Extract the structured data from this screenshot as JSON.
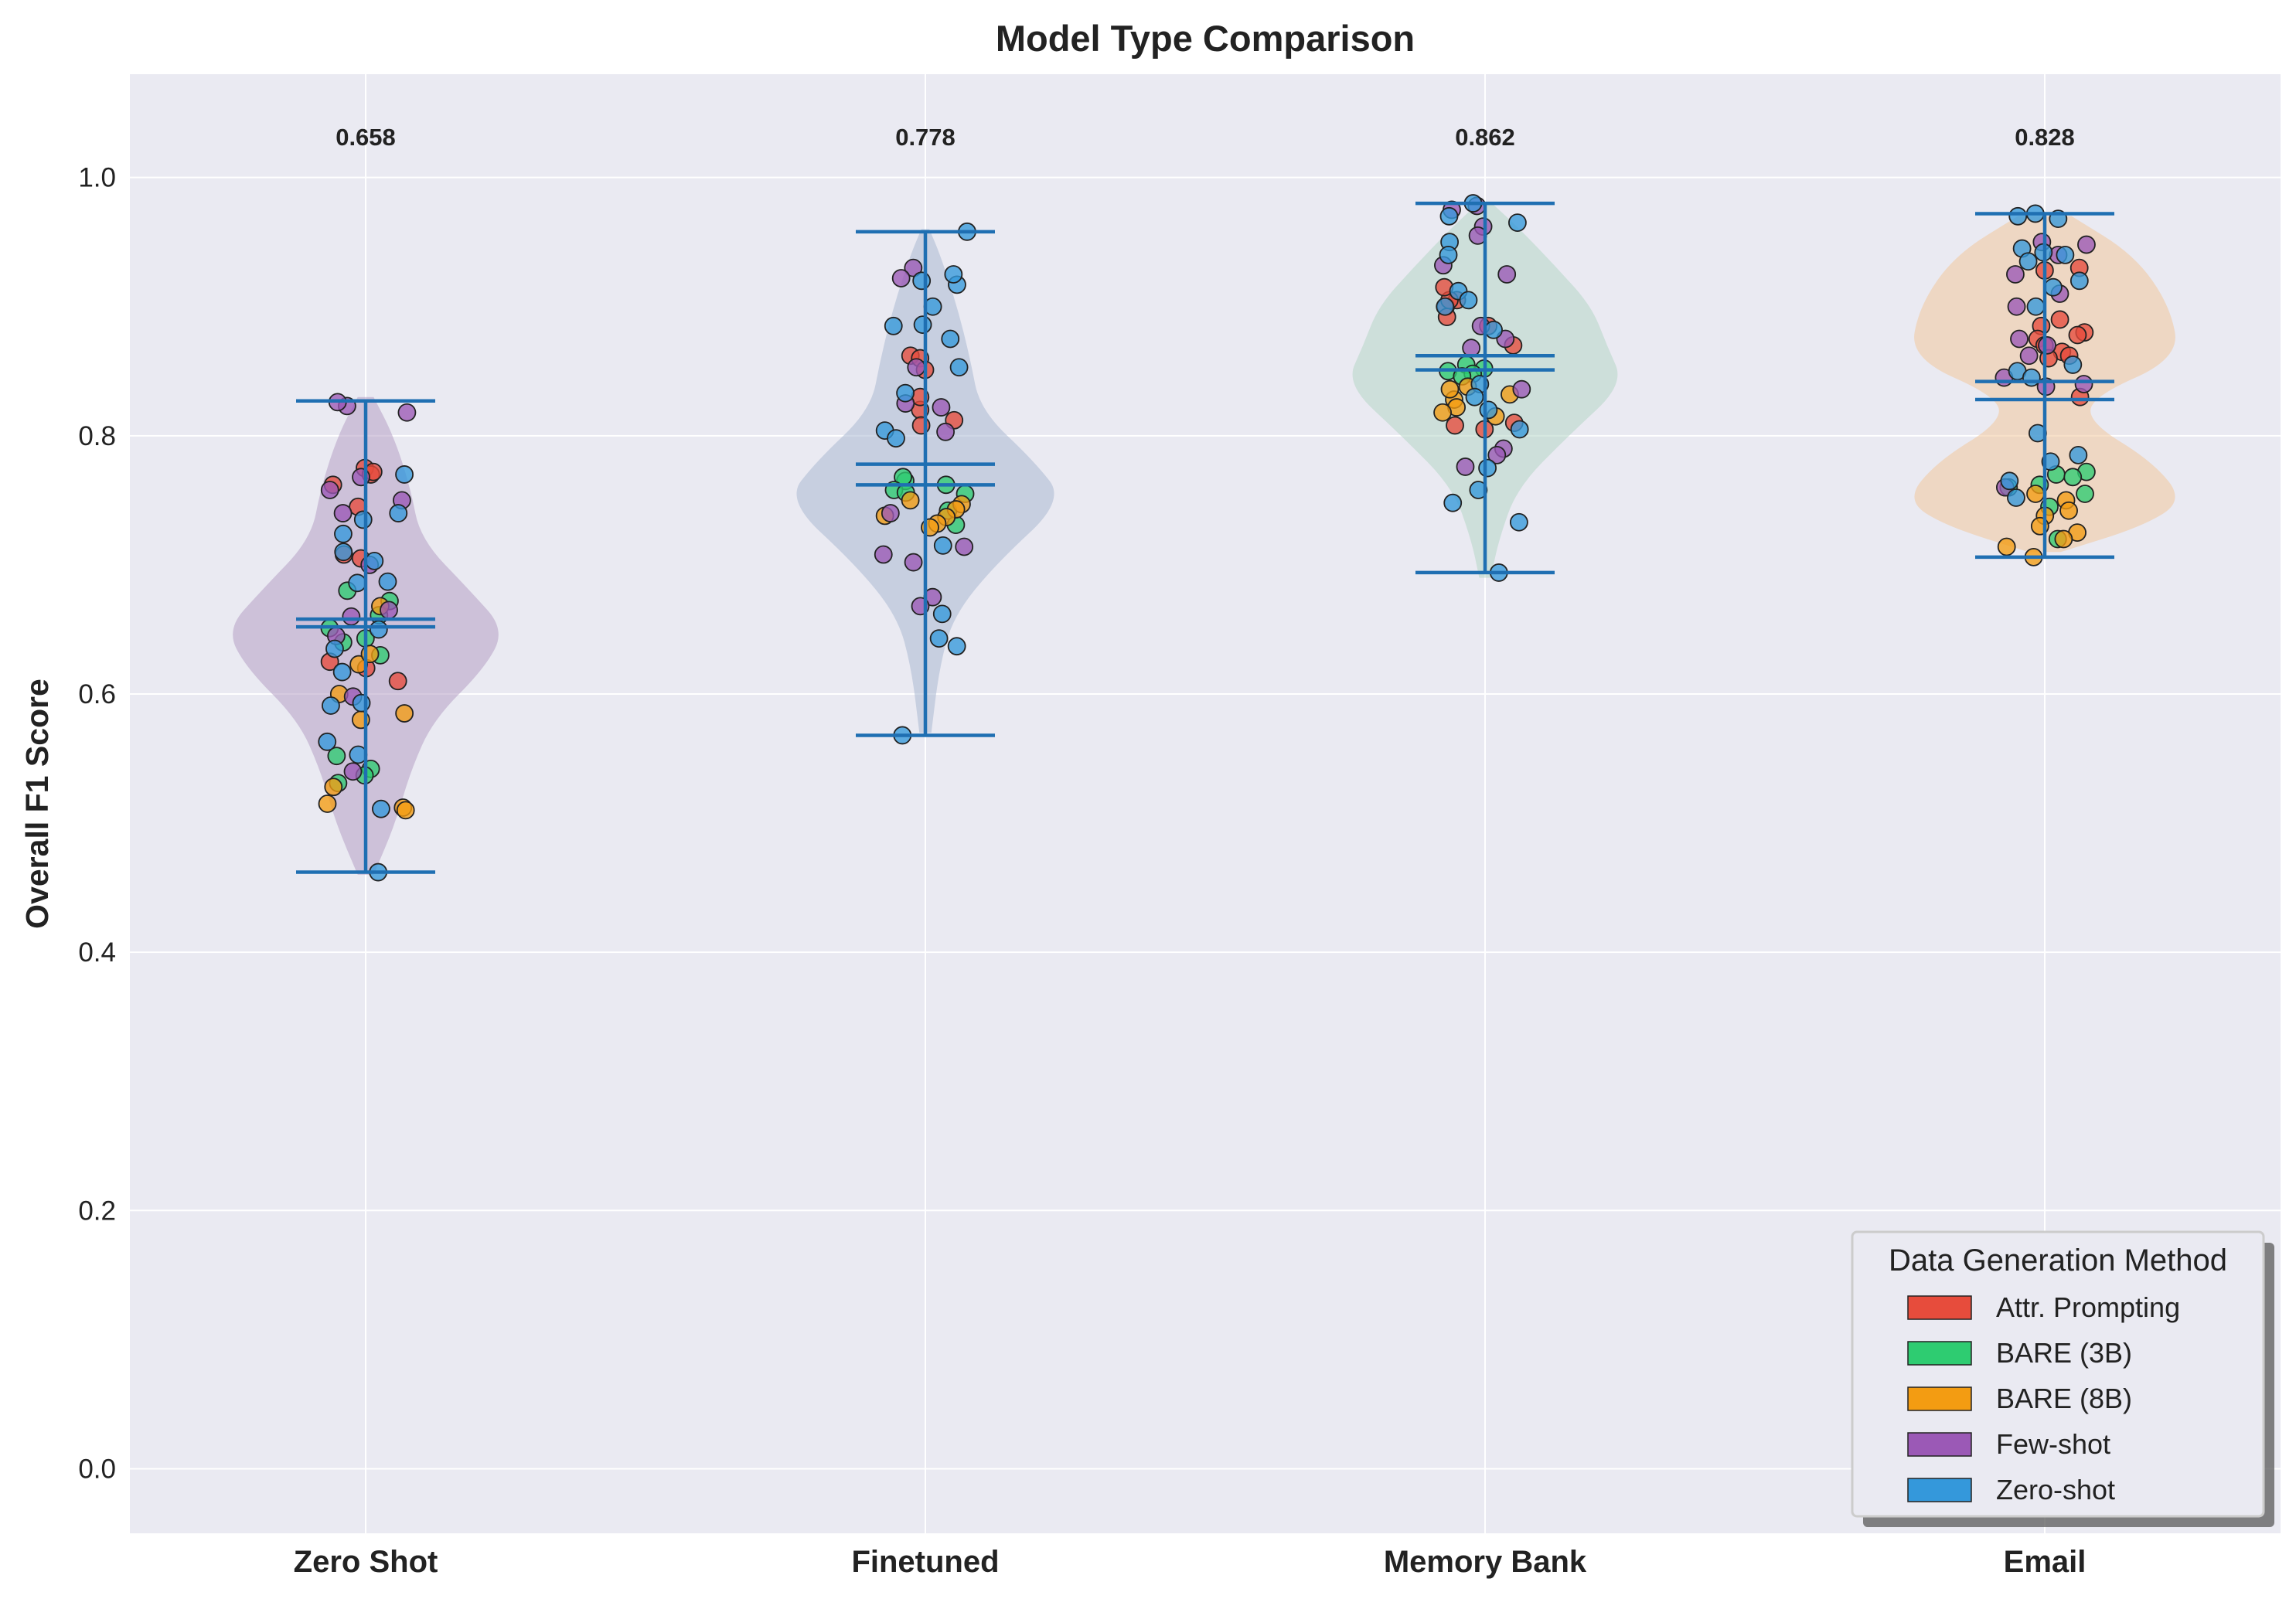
{
  "chart_data": {
    "type": "violin",
    "title": "Model Type Comparison",
    "xlabel": "",
    "ylabel": "Overall F1 Score",
    "ylim": [
      -0.05,
      1.08
    ],
    "yticks": [
      "0.0",
      "0.2",
      "0.4",
      "0.6",
      "0.8",
      "1.0"
    ],
    "grid": true,
    "legend_position": "bottom-right",
    "categories": [
      "Zero Shot",
      "Finetuned",
      "Memory Bank",
      "Email"
    ],
    "median_labels": [
      "0.658",
      "0.778",
      "0.862",
      "0.828"
    ],
    "groups": [
      {
        "name": "Zero Shot",
        "min": 0.462,
        "max": 0.827,
        "mean": 0.652,
        "median": 0.658,
        "color": "#b49fc4",
        "density": [
          [
            0.46,
            8
          ],
          [
            0.5,
            30
          ],
          [
            0.54,
            45
          ],
          [
            0.58,
            68
          ],
          [
            0.62,
            120
          ],
          [
            0.65,
            140
          ],
          [
            0.68,
            105
          ],
          [
            0.72,
            55
          ],
          [
            0.76,
            45
          ],
          [
            0.8,
            28
          ],
          [
            0.83,
            8
          ]
        ]
      },
      {
        "name": "Finetuned",
        "min": 0.568,
        "max": 0.958,
        "mean": 0.762,
        "median": 0.778,
        "color": "#aab8d1",
        "density": [
          [
            0.57,
            6
          ],
          [
            0.62,
            14
          ],
          [
            0.66,
            28
          ],
          [
            0.7,
            70
          ],
          [
            0.75,
            140
          ],
          [
            0.78,
            110
          ],
          [
            0.82,
            55
          ],
          [
            0.86,
            45
          ],
          [
            0.9,
            32
          ],
          [
            0.94,
            15
          ],
          [
            0.96,
            4
          ]
        ]
      },
      {
        "name": "Memory Bank",
        "min": 0.694,
        "max": 0.98,
        "mean": 0.851,
        "median": 0.862,
        "color": "#b5d6c6",
        "density": [
          [
            0.69,
            5
          ],
          [
            0.72,
            12
          ],
          [
            0.76,
            28
          ],
          [
            0.8,
            72
          ],
          [
            0.84,
            120
          ],
          [
            0.87,
            105
          ],
          [
            0.9,
            92
          ],
          [
            0.93,
            62
          ],
          [
            0.96,
            30
          ],
          [
            0.98,
            6
          ]
        ]
      },
      {
        "name": "Email",
        "min": 0.706,
        "max": 0.972,
        "mean": 0.842,
        "median": 0.828,
        "color": "#f0c69c",
        "density": [
          [
            0.71,
            18
          ],
          [
            0.73,
            110
          ],
          [
            0.75,
            155
          ],
          [
            0.78,
            120
          ],
          [
            0.81,
            50
          ],
          [
            0.83,
            52
          ],
          [
            0.86,
            150
          ],
          [
            0.9,
            140
          ],
          [
            0.94,
            100
          ],
          [
            0.97,
            30
          ]
        ]
      }
    ],
    "series_colors": [
      "#e74c3c",
      "#2ecc71",
      "#f39c12",
      "#9b59b6",
      "#3498db"
    ],
    "points": [
      [
        [
          0.775,
          0
        ],
        [
          0.77,
          0
        ],
        [
          0.762,
          0
        ],
        [
          0.708,
          0
        ],
        [
          0.705,
          0
        ],
        [
          0.62,
          0
        ],
        [
          0.625,
          0
        ],
        [
          0.61,
          0
        ],
        [
          0.772,
          0
        ],
        [
          0.745,
          0
        ],
        [
          0.68,
          1
        ],
        [
          0.672,
          1
        ],
        [
          0.661,
          1
        ],
        [
          0.651,
          1
        ],
        [
          0.643,
          1
        ],
        [
          0.64,
          1
        ],
        [
          0.63,
          1
        ],
        [
          0.552,
          1
        ],
        [
          0.542,
          1
        ],
        [
          0.537,
          1
        ],
        [
          0.531,
          1
        ],
        [
          0.515,
          2
        ],
        [
          0.512,
          2
        ],
        [
          0.51,
          2
        ],
        [
          0.528,
          2
        ],
        [
          0.58,
          2
        ],
        [
          0.585,
          2
        ],
        [
          0.6,
          2
        ],
        [
          0.623,
          2
        ],
        [
          0.631,
          2
        ],
        [
          0.668,
          2
        ],
        [
          0.823,
          3
        ],
        [
          0.826,
          3
        ],
        [
          0.818,
          3
        ],
        [
          0.768,
          3
        ],
        [
          0.74,
          3
        ],
        [
          0.7,
          3
        ],
        [
          0.66,
          3
        ],
        [
          0.645,
          3
        ],
        [
          0.665,
          3
        ],
        [
          0.598,
          3
        ],
        [
          0.54,
          3
        ],
        [
          0.758,
          3
        ],
        [
          0.75,
          3
        ],
        [
          0.71,
          4
        ],
        [
          0.74,
          4
        ],
        [
          0.735,
          4
        ],
        [
          0.724,
          4
        ],
        [
          0.703,
          4
        ],
        [
          0.686,
          4
        ],
        [
          0.687,
          4
        ],
        [
          0.65,
          4
        ],
        [
          0.635,
          4
        ],
        [
          0.617,
          4
        ],
        [
          0.593,
          4
        ],
        [
          0.591,
          4
        ],
        [
          0.563,
          4
        ],
        [
          0.553,
          4
        ],
        [
          0.511,
          4
        ],
        [
          0.462,
          4
        ],
        [
          0.77,
          4
        ]
      ],
      [
        [
          0.862,
          0
        ],
        [
          0.86,
          0
        ],
        [
          0.851,
          0
        ],
        [
          0.82,
          0
        ],
        [
          0.812,
          0
        ],
        [
          0.808,
          0
        ],
        [
          0.83,
          0
        ],
        [
          0.765,
          1
        ],
        [
          0.768,
          1
        ],
        [
          0.762,
          1
        ],
        [
          0.758,
          1
        ],
        [
          0.756,
          1
        ],
        [
          0.742,
          1
        ],
        [
          0.731,
          1
        ],
        [
          0.755,
          1
        ],
        [
          0.747,
          2
        ],
        [
          0.743,
          2
        ],
        [
          0.737,
          2
        ],
        [
          0.732,
          2
        ],
        [
          0.729,
          2
        ],
        [
          0.738,
          2
        ],
        [
          0.75,
          2
        ],
        [
          0.93,
          3
        ],
        [
          0.922,
          3
        ],
        [
          0.853,
          3
        ],
        [
          0.822,
          3
        ],
        [
          0.803,
          3
        ],
        [
          0.825,
          3
        ],
        [
          0.714,
          3
        ],
        [
          0.708,
          3
        ],
        [
          0.702,
          3
        ],
        [
          0.675,
          3
        ],
        [
          0.668,
          3
        ],
        [
          0.74,
          3
        ],
        [
          0.958,
          4
        ],
        [
          0.92,
          4
        ],
        [
          0.917,
          4
        ],
        [
          0.9,
          4
        ],
        [
          0.886,
          4
        ],
        [
          0.885,
          4
        ],
        [
          0.875,
          4
        ],
        [
          0.853,
          4
        ],
        [
          0.833,
          4
        ],
        [
          0.804,
          4
        ],
        [
          0.798,
          4
        ],
        [
          0.715,
          4
        ],
        [
          0.662,
          4
        ],
        [
          0.643,
          4
        ],
        [
          0.637,
          4
        ],
        [
          0.568,
          4
        ],
        [
          0.925,
          4
        ]
      ],
      [
        [
          0.905,
          0
        ],
        [
          0.9,
          0
        ],
        [
          0.905,
          0
        ],
        [
          0.915,
          0
        ],
        [
          0.885,
          0
        ],
        [
          0.87,
          0
        ],
        [
          0.81,
          0
        ],
        [
          0.808,
          0
        ],
        [
          0.805,
          0
        ],
        [
          0.892,
          0
        ],
        [
          0.855,
          1
        ],
        [
          0.852,
          1
        ],
        [
          0.85,
          1
        ],
        [
          0.848,
          1
        ],
        [
          0.846,
          1
        ],
        [
          0.838,
          2
        ],
        [
          0.832,
          2
        ],
        [
          0.828,
          2
        ],
        [
          0.822,
          2
        ],
        [
          0.818,
          2
        ],
        [
          0.815,
          2
        ],
        [
          0.836,
          2
        ],
        [
          0.978,
          3
        ],
        [
          0.975,
          3
        ],
        [
          0.962,
          3
        ],
        [
          0.955,
          3
        ],
        [
          0.932,
          3
        ],
        [
          0.925,
          3
        ],
        [
          0.885,
          3
        ],
        [
          0.875,
          3
        ],
        [
          0.868,
          3
        ],
        [
          0.836,
          3
        ],
        [
          0.79,
          3
        ],
        [
          0.785,
          3
        ],
        [
          0.776,
          3
        ],
        [
          0.98,
          4
        ],
        [
          0.97,
          4
        ],
        [
          0.965,
          4
        ],
        [
          0.95,
          4
        ],
        [
          0.94,
          4
        ],
        [
          0.912,
          4
        ],
        [
          0.905,
          4
        ],
        [
          0.9,
          4
        ],
        [
          0.882,
          4
        ],
        [
          0.84,
          4
        ],
        [
          0.83,
          4
        ],
        [
          0.82,
          4
        ],
        [
          0.805,
          4
        ],
        [
          0.775,
          4
        ],
        [
          0.758,
          4
        ],
        [
          0.748,
          4
        ],
        [
          0.733,
          4
        ],
        [
          0.694,
          4
        ]
      ],
      [
        [
          0.928,
          0
        ],
        [
          0.93,
          0
        ],
        [
          0.89,
          0
        ],
        [
          0.885,
          0
        ],
        [
          0.88,
          0
        ],
        [
          0.878,
          0
        ],
        [
          0.875,
          0
        ],
        [
          0.87,
          0
        ],
        [
          0.865,
          0
        ],
        [
          0.862,
          0
        ],
        [
          0.83,
          0
        ],
        [
          0.86,
          0
        ],
        [
          0.772,
          1
        ],
        [
          0.77,
          1
        ],
        [
          0.768,
          1
        ],
        [
          0.762,
          1
        ],
        [
          0.76,
          1
        ],
        [
          0.755,
          1
        ],
        [
          0.745,
          1
        ],
        [
          0.72,
          1
        ],
        [
          0.755,
          2
        ],
        [
          0.75,
          2
        ],
        [
          0.742,
          2
        ],
        [
          0.738,
          2
        ],
        [
          0.73,
          2
        ],
        [
          0.725,
          2
        ],
        [
          0.72,
          2
        ],
        [
          0.714,
          2
        ],
        [
          0.706,
          2
        ],
        [
          0.95,
          3
        ],
        [
          0.948,
          3
        ],
        [
          0.94,
          3
        ],
        [
          0.925,
          3
        ],
        [
          0.91,
          3
        ],
        [
          0.9,
          3
        ],
        [
          0.875,
          3
        ],
        [
          0.87,
          3
        ],
        [
          0.862,
          3
        ],
        [
          0.845,
          3
        ],
        [
          0.84,
          3
        ],
        [
          0.838,
          3
        ],
        [
          0.76,
          3
        ],
        [
          0.972,
          4
        ],
        [
          0.97,
          4
        ],
        [
          0.968,
          4
        ],
        [
          0.945,
          4
        ],
        [
          0.94,
          4
        ],
        [
          0.935,
          4
        ],
        [
          0.92,
          4
        ],
        [
          0.915,
          4
        ],
        [
          0.9,
          4
        ],
        [
          0.855,
          4
        ],
        [
          0.85,
          4
        ],
        [
          0.845,
          4
        ],
        [
          0.802,
          4
        ],
        [
          0.785,
          4
        ],
        [
          0.78,
          4
        ],
        [
          0.765,
          4
        ],
        [
          0.752,
          4
        ],
        [
          0.942,
          4
        ]
      ]
    ],
    "legend": {
      "title": "Data Generation Method",
      "items": [
        {
          "label": "Attr. Prompting",
          "color": "#e74c3c"
        },
        {
          "label": "BARE (3B)",
          "color": "#2ecc71"
        },
        {
          "label": "BARE (8B)",
          "color": "#f39c12"
        },
        {
          "label": "Few-shot",
          "color": "#9b59b6"
        },
        {
          "label": "Zero-shot",
          "color": "#3498db"
        }
      ]
    }
  }
}
